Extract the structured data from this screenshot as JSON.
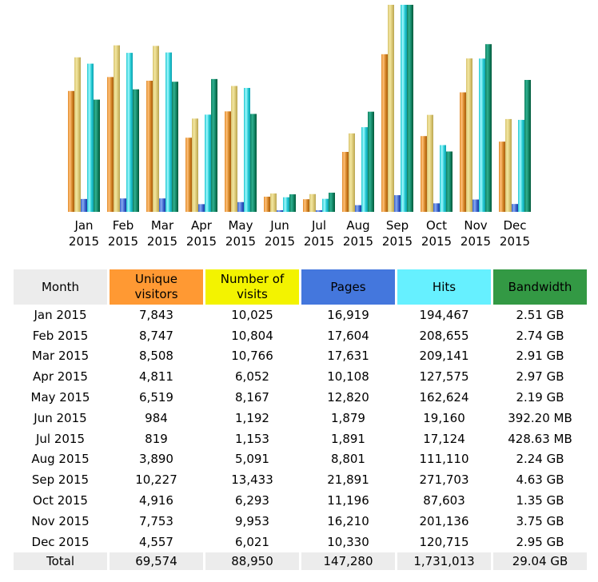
{
  "chart_data": {
    "type": "bar",
    "title": "",
    "xlabel": "",
    "ylabel": "",
    "categories": [
      "Jan 2015",
      "Feb 2015",
      "Mar 2015",
      "Apr 2015",
      "May 2015",
      "Jun 2015",
      "Jul 2015",
      "Aug 2015",
      "Sep 2015",
      "Oct 2015",
      "Nov 2015",
      "Dec 2015"
    ],
    "category_lines": [
      [
        "Jan",
        "2015"
      ],
      [
        "Feb",
        "2015"
      ],
      [
        "Mar",
        "2015"
      ],
      [
        "Apr",
        "2015"
      ],
      [
        "May",
        "2015"
      ],
      [
        "Jun",
        "2015"
      ],
      [
        "Jul",
        "2015"
      ],
      [
        "Aug",
        "2015"
      ],
      [
        "Sep",
        "2015"
      ],
      [
        "Oct",
        "2015"
      ],
      [
        "Nov",
        "2015"
      ],
      [
        "Dec",
        "2015"
      ]
    ],
    "series": [
      {
        "name": "Unique visitors",
        "color": "#ff9933",
        "values": [
          7843,
          8747,
          8508,
          4811,
          6519,
          984,
          819,
          3890,
          10227,
          4916,
          7753,
          4557
        ]
      },
      {
        "name": "Number of visits",
        "color": "#f3f300",
        "values": [
          10025,
          10804,
          10766,
          6052,
          8167,
          1192,
          1153,
          5091,
          13433,
          6293,
          9953,
          6021
        ]
      },
      {
        "name": "Pages",
        "color": "#4477dd",
        "values": [
          16919,
          17604,
          17631,
          10108,
          12820,
          1879,
          1891,
          8801,
          21891,
          11196,
          16210,
          10330
        ]
      },
      {
        "name": "Hits",
        "color": "#66f0ff",
        "values": [
          194467,
          208655,
          209141,
          127575,
          162624,
          19160,
          17124,
          111110,
          271703,
          87603,
          201136,
          120715
        ]
      },
      {
        "name": "Bandwidth (GB)",
        "color": "#339944",
        "values": [
          2.51,
          2.74,
          2.91,
          2.97,
          2.19,
          0.392,
          0.4286,
          2.24,
          4.63,
          1.35,
          3.75,
          2.95
        ]
      }
    ],
    "scales": {
      "visitors_visits_max": 13433,
      "pages_hits_max": 271703,
      "bandwidth_max": 4.63
    },
    "grid": false,
    "legend": "none"
  },
  "table": {
    "headers": [
      {
        "lines": [
          "Month"
        ]
      },
      {
        "lines": [
          "Unique",
          "visitors"
        ]
      },
      {
        "lines": [
          "Number of",
          "visits"
        ]
      },
      {
        "lines": [
          "Pages"
        ]
      },
      {
        "lines": [
          "Hits"
        ]
      },
      {
        "lines": [
          "Bandwidth"
        ]
      }
    ],
    "rows": [
      [
        "Jan 2015",
        "7,843",
        "10,025",
        "16,919",
        "194,467",
        "2.51 GB"
      ],
      [
        "Feb 2015",
        "8,747",
        "10,804",
        "17,604",
        "208,655",
        "2.74 GB"
      ],
      [
        "Mar 2015",
        "8,508",
        "10,766",
        "17,631",
        "209,141",
        "2.91 GB"
      ],
      [
        "Apr 2015",
        "4,811",
        "6,052",
        "10,108",
        "127,575",
        "2.97 GB"
      ],
      [
        "May 2015",
        "6,519",
        "8,167",
        "12,820",
        "162,624",
        "2.19 GB"
      ],
      [
        "Jun 2015",
        "984",
        "1,192",
        "1,879",
        "19,160",
        "392.20 MB"
      ],
      [
        "Jul 2015",
        "819",
        "1,153",
        "1,891",
        "17,124",
        "428.63 MB"
      ],
      [
        "Aug 2015",
        "3,890",
        "5,091",
        "8,801",
        "111,110",
        "2.24 GB"
      ],
      [
        "Sep 2015",
        "10,227",
        "13,433",
        "21,891",
        "271,703",
        "4.63 GB"
      ],
      [
        "Oct 2015",
        "4,916",
        "6,293",
        "11,196",
        "87,603",
        "1.35 GB"
      ],
      [
        "Nov 2015",
        "7,753",
        "9,953",
        "16,210",
        "201,136",
        "3.75 GB"
      ],
      [
        "Dec 2015",
        "4,557",
        "6,021",
        "10,330",
        "120,715",
        "2.95 GB"
      ]
    ],
    "total": [
      "Total",
      "69,574",
      "88,950",
      "147,280",
      "1,731,013",
      "29.04 GB"
    ]
  }
}
